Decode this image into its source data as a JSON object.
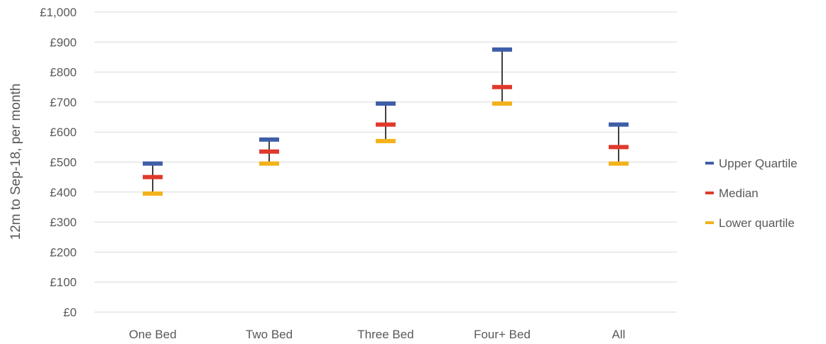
{
  "chart_data": {
    "type": "stock",
    "ylabel": "12m to Sep-18, per month",
    "xlabel": "",
    "title": "",
    "ylim": [
      0,
      1000
    ],
    "ytick_step": 100,
    "ytick_labels": [
      "£0",
      "£100",
      "£200",
      "£300",
      "£400",
      "£500",
      "£600",
      "£700",
      "£800",
      "£900",
      "£1,000"
    ],
    "categories": [
      "One Bed",
      "Two Bed",
      "Three Bed",
      "Four+ Bed",
      "All"
    ],
    "series": [
      {
        "name": "Upper Quartile",
        "color": "#3f5ea8",
        "values": [
          495,
          575,
          695,
          875,
          625
        ]
      },
      {
        "name": "Median",
        "color": "#e0392c",
        "values": [
          450,
          535,
          625,
          750,
          550
        ]
      },
      {
        "name": "Lower quartile",
        "color": "#f2b21b",
        "values": [
          395,
          495,
          570,
          695,
          495
        ]
      }
    ],
    "grid": true,
    "legend_position": "right"
  }
}
